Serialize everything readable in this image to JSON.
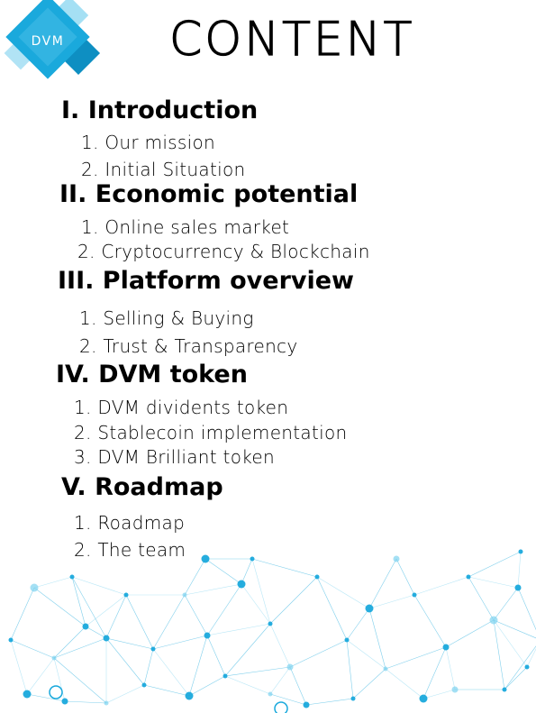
{
  "logo": {
    "text": "DVM"
  },
  "title": "CONTENT",
  "sections": [
    {
      "heading": "I. Introduction",
      "items": [
        "1. Our mission",
        "2. Initial  Situation"
      ]
    },
    {
      "heading": "II. Economic potential",
      "items": [
        "1. Online sales market",
        "2. Cryptocurrency & Blockchain"
      ]
    },
    {
      "heading": "III. Platform overview",
      "items": [
        "1. Selling & Buying",
        "2. Trust & Transparency"
      ]
    },
    {
      "heading": "IV. DVM token",
      "items": [
        "1. DVM dividents token",
        "2. Stablecoin implementation",
        "3. DVM Brilliant token"
      ]
    },
    {
      "heading": "V. Roadmap",
      "items": [
        "1. Roadmap",
        "2. The team"
      ]
    }
  ],
  "colors": {
    "accent": "#1aa9dc",
    "accent_dark": "#0e8fc2",
    "accent_light": "#7fd3ef",
    "text": "#000000"
  },
  "icons": {
    "logo": "dvm-logo-icon",
    "decoration": "network-graph"
  }
}
